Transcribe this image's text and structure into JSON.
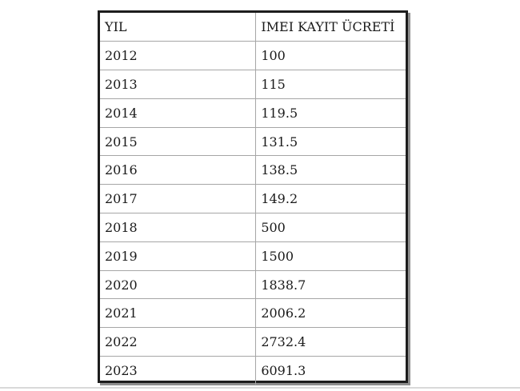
{
  "table": {
    "columns": [
      "YIL",
      "IMEI KAYIT ÜCRETİ"
    ],
    "rows": [
      [
        "2012",
        "100"
      ],
      [
        "2013",
        "115"
      ],
      [
        "2014",
        "119.5"
      ],
      [
        "2015",
        "131.5"
      ],
      [
        "2016",
        "138.5"
      ],
      [
        "2017",
        "149.2"
      ],
      [
        "2018",
        "500"
      ],
      [
        "2019",
        "1500"
      ],
      [
        "2020",
        "1838.7"
      ],
      [
        "2021",
        "2006.2"
      ],
      [
        "2022",
        "2732.4"
      ],
      [
        "2023",
        "6091.3"
      ]
    ]
  },
  "colors": {
    "text": "#1a1a1a",
    "grid_line": "#a6a6a6",
    "outer_border": "#1d1d1d",
    "border_shadow": "#8f8f8f",
    "page_rule": "#d9d9d9",
    "background": "#ffffff"
  }
}
